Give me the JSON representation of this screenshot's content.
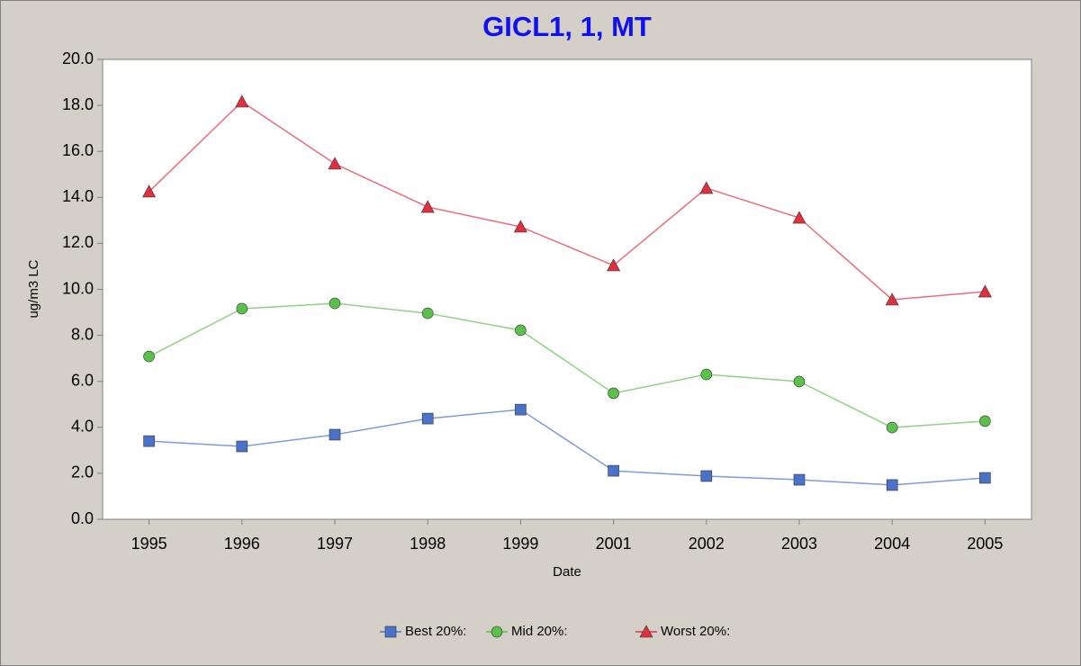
{
  "chart_data": {
    "type": "line",
    "title": "GICL1, 1, MT",
    "x_label": "Date",
    "y_label": "ug/m3 LC",
    "categories": [
      "1995",
      "1996",
      "1997",
      "1998",
      "1999",
      "2001",
      "2002",
      "2003",
      "2004",
      "2005"
    ],
    "series": [
      {
        "name": "Best 20%:",
        "color": "#4a72c8",
        "marker": "square",
        "values": [
          3.4,
          3.17,
          3.68,
          4.38,
          4.77,
          2.11,
          1.88,
          1.72,
          1.49,
          1.8
        ]
      },
      {
        "name": "Mid 20%:",
        "color": "#5cc04c",
        "marker": "circle",
        "values": [
          7.08,
          9.16,
          9.39,
          8.96,
          8.22,
          5.48,
          6.3,
          5.99,
          3.99,
          4.27
        ]
      },
      {
        "name": "Worst 20%:",
        "color": "#e03040",
        "marker": "triangle",
        "values": [
          14.25,
          18.16,
          15.46,
          13.58,
          12.72,
          11.04,
          14.4,
          13.11,
          9.55,
          9.9
        ]
      }
    ],
    "ylim": [
      0,
      20
    ],
    "yticks": [
      {
        "value": 0,
        "label": "0.0"
      },
      {
        "value": 2,
        "label": "2.0"
      },
      {
        "value": 4,
        "label": "4.0"
      },
      {
        "value": 6,
        "label": "6.0"
      },
      {
        "value": 8,
        "label": "8.0"
      },
      {
        "value": 10,
        "label": "10.0"
      },
      {
        "value": 12,
        "label": "12.0"
      },
      {
        "value": 14,
        "label": "14.0"
      },
      {
        "value": 16,
        "label": "16.0"
      },
      {
        "value": 18,
        "label": "18.0"
      },
      {
        "value": 20,
        "label": "20.0"
      }
    ],
    "grid": false,
    "legend": "bottom"
  }
}
